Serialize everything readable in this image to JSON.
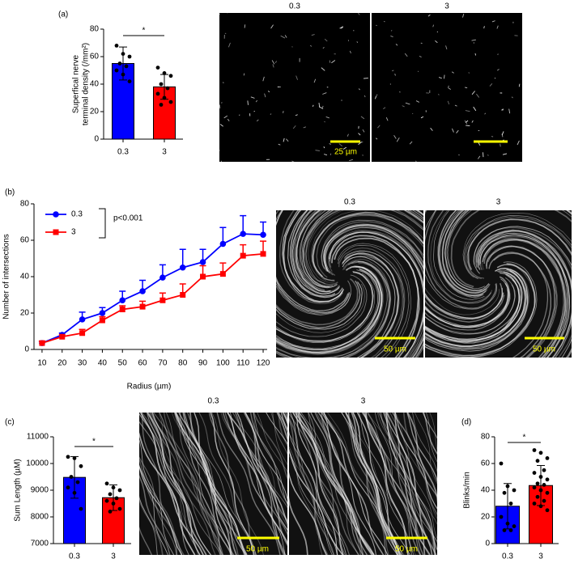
{
  "chart_data": [
    {
      "type": "bar",
      "panel_label": "(a)",
      "y_label": [
        "Superfical nerve",
        "terminal density (/mm²)"
      ],
      "categories": [
        "0.3",
        "3"
      ],
      "values": [
        55,
        38
      ],
      "errors": [
        12,
        9
      ],
      "colors": [
        "#0000ff",
        "#ff0000"
      ],
      "points": [
        [
          68,
          62,
          60,
          55,
          53,
          50,
          47,
          42
        ],
        [
          52,
          48,
          46,
          40,
          37,
          33,
          30,
          27,
          25
        ]
      ],
      "ylim": [
        0,
        80
      ],
      "yticks": [
        0,
        20,
        40,
        60,
        80
      ],
      "annotation": "*"
    },
    {
      "type": "line",
      "panel_label": "(b)",
      "x_label": "Radius (µm)",
      "y_label": "Number of intersections",
      "x": [
        10,
        20,
        30,
        40,
        50,
        60,
        70,
        80,
        90,
        100,
        110,
        120
      ],
      "series": [
        {
          "name": "0.3",
          "color": "#0000ff",
          "marker": "circle",
          "values": [
            3.5,
            8,
            16.5,
            20,
            27,
            32,
            39.5,
            45,
            48,
            58,
            63.5,
            63
          ],
          "errors": [
            1,
            1,
            4,
            3,
            5,
            6,
            7,
            10,
            7,
            9,
            10,
            7
          ]
        },
        {
          "name": "3",
          "color": "#ff0000",
          "marker": "square",
          "values": [
            3.5,
            7,
            9,
            16,
            22,
            23.5,
            27,
            30,
            40,
            41.5,
            51.5,
            52.5
          ],
          "errors": [
            1,
            1,
            2,
            2,
            2,
            3,
            4,
            6,
            6,
            6,
            6,
            7
          ]
        }
      ],
      "xlim": [
        6,
        122
      ],
      "xticks": [
        10,
        20,
        30,
        40,
        50,
        60,
        70,
        80,
        90,
        100,
        110,
        120
      ],
      "ylim": [
        0,
        80
      ],
      "yticks": [
        0,
        20,
        40,
        60,
        80
      ],
      "annotation": "p<0.001"
    },
    {
      "type": "bar",
      "panel_label": "(c)",
      "y_label": [
        "Sum Length (µM)"
      ],
      "categories": [
        "0.3",
        "3"
      ],
      "values": [
        9480,
        8720
      ],
      "errors": [
        780,
        480
      ],
      "colors": [
        "#0000ff",
        "#ff0000"
      ],
      "points": [
        [
          10250,
          10200,
          9900,
          9500,
          9300,
          9100,
          8900,
          8300
        ],
        [
          9250,
          9100,
          9000,
          8850,
          8700,
          8600,
          8500,
          8300,
          8200
        ]
      ],
      "ylim": [
        7000,
        11000
      ],
      "yticks": [
        7000,
        8000,
        9000,
        10000,
        11000
      ],
      "annotation": "*"
    },
    {
      "type": "bar",
      "panel_label": "(d)",
      "y_label": [
        "Blinks/min"
      ],
      "categories": [
        "0.3",
        "3"
      ],
      "values": [
        28,
        43.5
      ],
      "errors": [
        17,
        15
      ],
      "colors": [
        "#0000ff",
        "#ff0000"
      ],
      "points": [
        [
          60,
          43,
          40,
          38,
          30,
          20,
          15,
          13,
          10,
          10
        ],
        [
          70,
          68,
          64,
          62,
          55,
          53,
          50,
          48,
          45,
          44,
          42,
          40,
          38,
          35,
          32,
          30,
          28,
          25
        ]
      ],
      "ylim": [
        0,
        80
      ],
      "yticks": [
        0,
        20,
        40,
        60,
        80
      ],
      "annotation": "*"
    }
  ],
  "micrographs": [
    {
      "labels": [
        "0.3",
        "3"
      ],
      "scale_bar_labels": [
        "25 µm"
      ]
    },
    {
      "labels": [
        "0.3",
        "3"
      ],
      "scale_bar_labels": [
        "50 µm",
        "50 µm"
      ]
    },
    {
      "labels": [
        "0.3",
        "3"
      ],
      "scale_bar_labels": [
        "50 µm",
        "50 µm"
      ]
    }
  ]
}
